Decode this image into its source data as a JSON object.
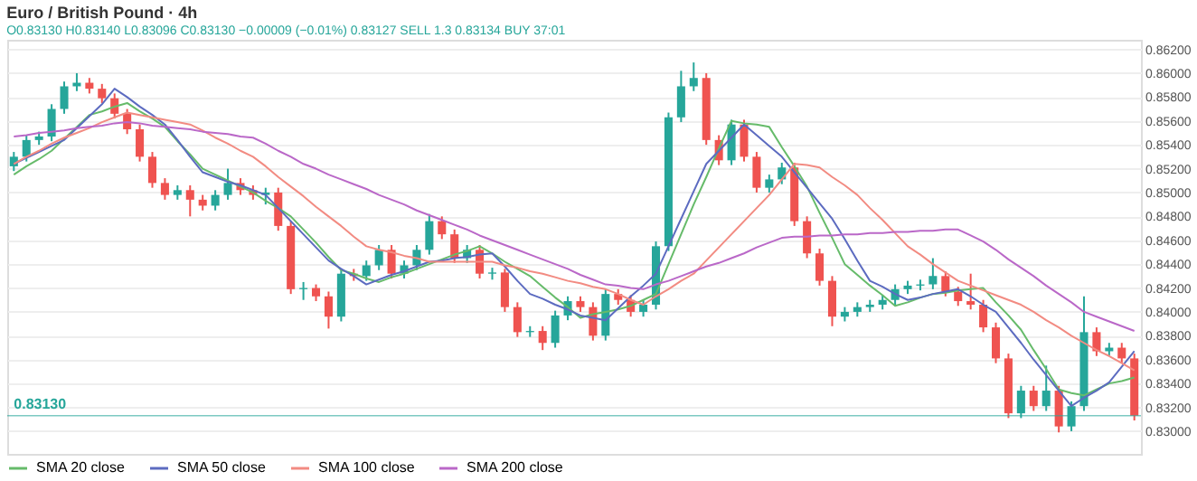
{
  "chart_data": {
    "type": "candlestick",
    "title": "Euro / British Pound · 4h",
    "annotations": [
      "O0.83130 H0.83140 L0.83096 C0.83130 −0.00009 (−0.01%)",
      "0.83127 SELL",
      "1.3",
      "0.83134 BUY",
      "37:01"
    ],
    "categories": [
      null,
      null,
      null,
      null,
      null,
      null,
      null,
      null,
      null,
      null,
      null,
      null,
      null,
      null,
      null,
      null,
      null,
      null,
      null,
      null,
      null,
      null,
      null,
      null,
      null,
      null,
      null,
      null,
      null,
      null,
      null,
      null,
      null,
      null,
      null,
      null,
      null,
      null,
      null,
      null,
      null,
      null,
      null,
      null,
      null,
      null,
      null,
      null,
      null,
      null,
      null,
      null,
      null,
      null,
      null,
      null,
      null,
      null,
      null,
      null,
      null,
      null,
      null,
      null,
      null,
      null,
      null,
      null,
      null,
      null,
      null,
      null,
      null,
      null,
      null,
      null,
      null,
      null,
      null,
      null,
      null,
      null,
      null,
      null,
      null,
      null,
      null,
      null,
      null,
      null
    ],
    "ohlc": [
      [
        0.8522,
        0.8534,
        0.8518,
        0.853
      ],
      [
        0.853,
        0.8548,
        0.8526,
        0.8544
      ],
      [
        0.8544,
        0.8551,
        0.854,
        0.8547
      ],
      [
        0.8547,
        0.8574,
        0.8543,
        0.857
      ],
      [
        0.857,
        0.8593,
        0.8566,
        0.8589
      ],
      [
        0.8589,
        0.86,
        0.8585,
        0.8592
      ],
      [
        0.8592,
        0.8596,
        0.8583,
        0.8587
      ],
      [
        0.8587,
        0.8591,
        0.8575,
        0.8579
      ],
      [
        0.8579,
        0.8583,
        0.8562,
        0.8566
      ],
      [
        0.8566,
        0.857,
        0.8549,
        0.8553
      ],
      [
        0.8553,
        0.8557,
        0.8526,
        0.853
      ],
      [
        0.853,
        0.8534,
        0.8504,
        0.8508
      ],
      [
        0.8508,
        0.8512,
        0.8494,
        0.8498
      ],
      [
        0.8498,
        0.8506,
        0.8494,
        0.8502
      ],
      [
        0.8502,
        0.8506,
        0.848,
        0.8494
      ],
      [
        0.8494,
        0.8498,
        0.8485,
        0.8489
      ],
      [
        0.8489,
        0.8502,
        0.8485,
        0.8498
      ],
      [
        0.8498,
        0.852,
        0.8494,
        0.8508
      ],
      [
        0.8508,
        0.8512,
        0.8498,
        0.8502
      ],
      [
        0.8502,
        0.8506,
        0.8494,
        0.8498
      ],
      [
        0.8498,
        0.8504,
        0.849,
        0.85
      ],
      [
        0.85,
        0.8504,
        0.8468,
        0.8472
      ],
      [
        0.8472,
        0.8476,
        0.8415,
        0.8419
      ],
      [
        0.8419,
        0.8425,
        0.841,
        0.842
      ],
      [
        0.842,
        0.8423,
        0.8409,
        0.8413
      ],
      [
        0.8413,
        0.8417,
        0.8386,
        0.8396
      ],
      [
        0.8396,
        0.8436,
        0.8392,
        0.8432
      ],
      [
        0.8432,
        0.8436,
        0.8426,
        0.843
      ],
      [
        0.843,
        0.8443,
        0.8426,
        0.8439
      ],
      [
        0.8439,
        0.8456,
        0.8435,
        0.8452
      ],
      [
        0.8452,
        0.8456,
        0.8428,
        0.8432
      ],
      [
        0.8432,
        0.8443,
        0.8428,
        0.8439
      ],
      [
        0.8439,
        0.8456,
        0.8435,
        0.8452
      ],
      [
        0.8452,
        0.8482,
        0.8448,
        0.8476
      ],
      [
        0.8476,
        0.848,
        0.8461,
        0.8465
      ],
      [
        0.8465,
        0.8469,
        0.8441,
        0.8445
      ],
      [
        0.8445,
        0.8456,
        0.8441,
        0.8452
      ],
      [
        0.8452,
        0.8456,
        0.8428,
        0.8432
      ],
      [
        0.8432,
        0.8437,
        0.8427,
        0.8433
      ],
      [
        0.8433,
        0.8436,
        0.84,
        0.8404
      ],
      [
        0.8404,
        0.8408,
        0.8379,
        0.8383
      ],
      [
        0.8383,
        0.8388,
        0.8379,
        0.8384
      ],
      [
        0.8384,
        0.8388,
        0.8368,
        0.8374
      ],
      [
        0.8374,
        0.8401,
        0.837,
        0.8397
      ],
      [
        0.8397,
        0.8413,
        0.8393,
        0.8409
      ],
      [
        0.8409,
        0.8413,
        0.84,
        0.8404
      ],
      [
        0.8404,
        0.8408,
        0.8376,
        0.838
      ],
      [
        0.838,
        0.8419,
        0.8376,
        0.8415
      ],
      [
        0.8415,
        0.8419,
        0.8406,
        0.841
      ],
      [
        0.841,
        0.8414,
        0.8396,
        0.84
      ],
      [
        0.84,
        0.841,
        0.8396,
        0.8406
      ],
      [
        0.8406,
        0.8459,
        0.8402,
        0.8455
      ],
      [
        0.8455,
        0.8567,
        0.8451,
        0.8563
      ],
      [
        0.8563,
        0.8602,
        0.8559,
        0.8589
      ],
      [
        0.8589,
        0.8609,
        0.8585,
        0.8596
      ],
      [
        0.8596,
        0.86,
        0.854,
        0.8544
      ],
      [
        0.8544,
        0.8548,
        0.8523,
        0.8527
      ],
      [
        0.8527,
        0.8561,
        0.8523,
        0.8557
      ],
      [
        0.8557,
        0.8561,
        0.8526,
        0.853
      ],
      [
        0.853,
        0.8534,
        0.85,
        0.8504
      ],
      [
        0.8504,
        0.8515,
        0.85,
        0.8511
      ],
      [
        0.8511,
        0.8525,
        0.8507,
        0.8521
      ],
      [
        0.8521,
        0.8525,
        0.8472,
        0.8476
      ],
      [
        0.8476,
        0.848,
        0.8445,
        0.8449
      ],
      [
        0.8449,
        0.8453,
        0.8422,
        0.8426
      ],
      [
        0.8426,
        0.843,
        0.8388,
        0.8396
      ],
      [
        0.8396,
        0.8404,
        0.8392,
        0.84
      ],
      [
        0.84,
        0.8408,
        0.8396,
        0.8404
      ],
      [
        0.8404,
        0.841,
        0.84,
        0.8406
      ],
      [
        0.8406,
        0.8414,
        0.8402,
        0.841
      ],
      [
        0.841,
        0.8423,
        0.8406,
        0.8419
      ],
      [
        0.8419,
        0.8426,
        0.8415,
        0.8422
      ],
      [
        0.8422,
        0.8427,
        0.8418,
        0.8423
      ],
      [
        0.8423,
        0.8445,
        0.8419,
        0.843
      ],
      [
        0.843,
        0.8434,
        0.8413,
        0.8417
      ],
      [
        0.8417,
        0.8421,
        0.8405,
        0.8409
      ],
      [
        0.8409,
        0.8432,
        0.8402,
        0.8406
      ],
      [
        0.8406,
        0.841,
        0.8383,
        0.8387
      ],
      [
        0.8387,
        0.8391,
        0.8357,
        0.8361
      ],
      [
        0.8361,
        0.8365,
        0.8311,
        0.8315
      ],
      [
        0.8315,
        0.8338,
        0.8311,
        0.8334
      ],
      [
        0.8334,
        0.8338,
        0.8317,
        0.8321
      ],
      [
        0.8321,
        0.8355,
        0.8317,
        0.8334
      ],
      [
        0.8334,
        0.8338,
        0.8299,
        0.8304
      ],
      [
        0.8304,
        0.8325,
        0.83,
        0.8321
      ],
      [
        0.8321,
        0.8413,
        0.8317,
        0.8383
      ],
      [
        0.8383,
        0.8387,
        0.8363,
        0.8367
      ],
      [
        0.8367,
        0.8374,
        0.8363,
        0.837
      ],
      [
        0.837,
        0.8374,
        0.8357,
        0.8361
      ],
      [
        0.8361,
        0.8365,
        0.8309,
        0.8313
      ]
    ],
    "colors": [
      "#26a69a",
      "#26a69a",
      "#26a69a",
      "#26a69a",
      "#26a69a",
      "#26a69a",
      "#ef5350",
      "#ef5350",
      "#ef5350",
      "#ef5350",
      "#ef5350",
      "#ef5350",
      "#ef5350",
      "#26a69a",
      "#ef5350",
      "#ef5350",
      "#26a69a",
      "#26a69a",
      "#ef5350",
      "#ef5350",
      "#26a69a",
      "#ef5350",
      "#ef5350",
      "#26a69a",
      "#ef5350",
      "#ef5350",
      "#26a69a",
      "#ef5350",
      "#26a69a",
      "#26a69a",
      "#ef5350",
      "#26a69a",
      "#26a69a",
      "#26a69a",
      "#ef5350",
      "#ef5350",
      "#26a69a",
      "#ef5350",
      "#26a69a",
      "#ef5350",
      "#ef5350",
      "#26a69a",
      "#ef5350",
      "#26a69a",
      "#26a69a",
      "#ef5350",
      "#ef5350",
      "#26a69a",
      "#ef5350",
      "#ef5350",
      "#26a69a",
      "#26a69a",
      "#26a69a",
      "#26a69a",
      "#26a69a",
      "#ef5350",
      "#ef5350",
      "#26a69a",
      "#ef5350",
      "#ef5350",
      "#26a69a",
      "#26a69a",
      "#ef5350",
      "#ef5350",
      "#ef5350",
      "#ef5350",
      "#26a69a",
      "#26a69a",
      "#26a69a",
      "#26a69a",
      "#26a69a",
      "#26a69a",
      "#26a69a",
      "#26a69a",
      "#ef5350",
      "#ef5350",
      "#ef5350",
      "#ef5350",
      "#ef5350",
      "#ef5350",
      "#26a69a",
      "#ef5350",
      "#26a69a",
      "#ef5350",
      "#26a69a",
      "#26a69a",
      "#ef5350",
      "#26a69a",
      "#ef5350",
      "#ef5350"
    ],
    "series": [
      {
        "name": "SMA 20 close",
        "type": "line",
        "color": "#66bb6a",
        "values": [
          0.8515,
          0.8522,
          0.8528,
          0.8535,
          0.8545,
          0.8555,
          0.8565,
          0.8568,
          0.8572,
          0.8575,
          0.8568,
          0.8562,
          0.8555,
          0.8543,
          0.8532,
          0.852,
          0.8515,
          0.851,
          0.8505,
          0.85,
          0.8493,
          0.8487,
          0.848,
          0.8469,
          0.8458,
          0.8446,
          0.8435,
          0.8432,
          0.8428,
          0.8425,
          0.8429,
          0.8432,
          0.8436,
          0.844,
          0.8444,
          0.8448,
          0.8451,
          0.8455,
          0.8449,
          0.8442,
          0.8436,
          0.843,
          0.8421,
          0.8412,
          0.8404,
          0.8395,
          0.8398,
          0.84,
          0.8402,
          0.8405,
          0.841,
          0.8415,
          0.844,
          0.8465,
          0.849,
          0.8513,
          0.8537,
          0.856,
          0.8558,
          0.8557,
          0.8555,
          0.8538,
          0.8522,
          0.8505,
          0.8483,
          0.8462,
          0.844,
          0.8431,
          0.8422,
          0.8414,
          0.8405,
          0.8408,
          0.8412,
          0.8415,
          0.8416,
          0.8418,
          0.8419,
          0.842,
          0.8408,
          0.8397,
          0.8385,
          0.8368,
          0.8352,
          0.8335,
          0.8332,
          0.833,
          0.8335,
          0.834,
          0.8342,
          0.8345
        ]
      },
      {
        "name": "SMA 50 close",
        "type": "line",
        "color": "#5c6bc0",
        "values": [
          0.8524,
          0.8529,
          0.8534,
          0.8539,
          0.8544,
          0.8554,
          0.8564,
          0.8574,
          0.8587,
          0.858,
          0.8572,
          0.8565,
          0.8557,
          0.8544,
          0.853,
          0.8517,
          0.8513,
          0.8509,
          0.8506,
          0.8502,
          0.8498,
          0.8487,
          0.8476,
          0.8465,
          0.8454,
          0.8443,
          0.8436,
          0.843,
          0.8423,
          0.8427,
          0.8431,
          0.8434,
          0.8438,
          0.8442,
          0.8443,
          0.8445,
          0.8446,
          0.8448,
          0.8449,
          0.8438,
          0.8426,
          0.8415,
          0.8411,
          0.8406,
          0.8402,
          0.8397,
          0.8395,
          0.8393,
          0.8403,
          0.8413,
          0.8422,
          0.8432,
          0.8455,
          0.8478,
          0.8501,
          0.8524,
          0.8535,
          0.8546,
          0.8557,
          0.8548,
          0.8539,
          0.853,
          0.8517,
          0.8504,
          0.8491,
          0.8478,
          0.8461,
          0.8443,
          0.8426,
          0.8421,
          0.8415,
          0.841,
          0.8412,
          0.8415,
          0.8417,
          0.8419,
          0.8413,
          0.8406,
          0.84,
          0.8387,
          0.8374,
          0.836,
          0.8347,
          0.8334,
          0.8321,
          0.8328,
          0.8334,
          0.8341,
          0.8354,
          0.8367
        ]
      },
      {
        "name": "SMA 100 close",
        "type": "line",
        "color": "#f28b82",
        "values": [
          0.8524,
          0.853,
          0.8535,
          0.8541,
          0.8546,
          0.855,
          0.8554,
          0.8559,
          0.8563,
          0.8567,
          0.8565,
          0.8563,
          0.8561,
          0.8559,
          0.8557,
          0.8552,
          0.8546,
          0.8541,
          0.8535,
          0.853,
          0.8522,
          0.8513,
          0.8505,
          0.8497,
          0.8488,
          0.848,
          0.8472,
          0.8463,
          0.8455,
          0.8452,
          0.845,
          0.8447,
          0.8445,
          0.8442,
          0.8442,
          0.8442,
          0.8442,
          0.8442,
          0.8442,
          0.8439,
          0.8437,
          0.8434,
          0.8432,
          0.8429,
          0.8426,
          0.8424,
          0.8421,
          0.8419,
          0.8415,
          0.841,
          0.8406,
          0.8413,
          0.8419,
          0.8426,
          0.8432,
          0.8443,
          0.8454,
          0.8465,
          0.8476,
          0.8487,
          0.8498,
          0.8511,
          0.8524,
          0.8523,
          0.8521,
          0.8513,
          0.8506,
          0.8498,
          0.8487,
          0.8477,
          0.8466,
          0.8455,
          0.8448,
          0.844,
          0.8433,
          0.8426,
          0.8422,
          0.8418,
          0.8414,
          0.841,
          0.8406,
          0.84,
          0.8393,
          0.8387,
          0.838,
          0.8374,
          0.8368,
          0.8363,
          0.8357,
          0.8351
        ]
      },
      {
        "name": "SMA 200 close",
        "type": "line",
        "color": "#ba68c8",
        "values": [
          0.8547,
          0.8548,
          0.855,
          0.8551,
          0.8552,
          0.8554,
          0.8555,
          0.8556,
          0.8558,
          0.8559,
          0.8558,
          0.8556,
          0.8555,
          0.8554,
          0.8553,
          0.8551,
          0.855,
          0.8549,
          0.8547,
          0.8546,
          0.8541,
          0.8535,
          0.853,
          0.8524,
          0.852,
          0.8515,
          0.8511,
          0.8507,
          0.8503,
          0.8498,
          0.8494,
          0.849,
          0.8485,
          0.8481,
          0.8477,
          0.8473,
          0.8469,
          0.8464,
          0.846,
          0.8456,
          0.8452,
          0.8448,
          0.8444,
          0.844,
          0.8436,
          0.8431,
          0.8427,
          0.8423,
          0.8422,
          0.842,
          0.8419,
          0.8423,
          0.8426,
          0.843,
          0.8434,
          0.8438,
          0.8441,
          0.8445,
          0.8449,
          0.8454,
          0.8458,
          0.8462,
          0.8463,
          0.8463,
          0.8464,
          0.8464,
          0.8465,
          0.8465,
          0.8466,
          0.8466,
          0.8467,
          0.8467,
          0.8468,
          0.8468,
          0.8469,
          0.8469,
          0.8464,
          0.8459,
          0.8452,
          0.8444,
          0.8437,
          0.843,
          0.8422,
          0.8415,
          0.8408,
          0.84,
          0.8396,
          0.8392,
          0.8388,
          0.8384
        ]
      }
    ],
    "ylim": [
      0.8281,
      0.8628
    ],
    "yticks": [
      {
        "value": 0.83,
        "label": "0.83000"
      },
      {
        "value": 0.832,
        "label": "0.83200"
      },
      {
        "value": 0.834,
        "label": "0.83400"
      },
      {
        "value": 0.836,
        "label": "0.83600"
      },
      {
        "value": 0.838,
        "label": "0.83800"
      },
      {
        "value": 0.84,
        "label": "0.84000"
      },
      {
        "value": 0.842,
        "label": "0.84200"
      },
      {
        "value": 0.844,
        "label": "0.84400"
      },
      {
        "value": 0.846,
        "label": "0.84600"
      },
      {
        "value": 0.848,
        "label": "0.84800"
      },
      {
        "value": 0.85,
        "label": "0.85000"
      },
      {
        "value": 0.852,
        "label": "0.85200"
      },
      {
        "value": 0.854,
        "label": "0.85400"
      },
      {
        "value": 0.856,
        "label": "0.85600"
      },
      {
        "value": 0.858,
        "label": "0.85800"
      },
      {
        "value": 0.86,
        "label": "0.86000"
      },
      {
        "value": 0.862,
        "label": "0.86200"
      }
    ],
    "ref_lines": [
      {
        "axis": "y",
        "value": 0.8313,
        "label": "0.83130",
        "color": "#26a69a",
        "line_style": "solid"
      }
    ],
    "tick_labels": "y",
    "grid": "y",
    "legend": "bottom"
  }
}
